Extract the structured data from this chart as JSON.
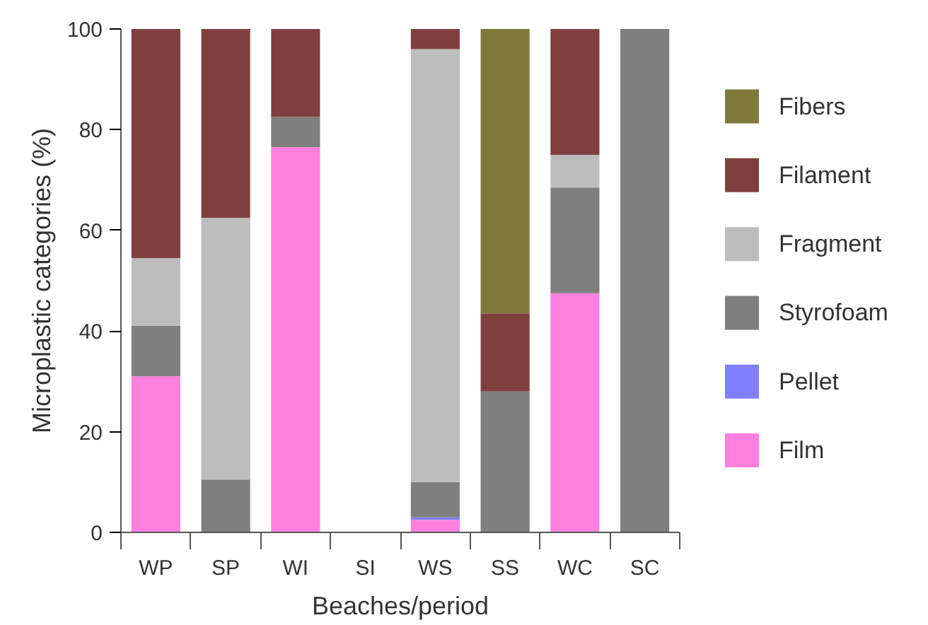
{
  "chart_data": {
    "type": "bar",
    "stacked": true,
    "xlabel": "Beaches/period",
    "ylabel": "Microplastic categories (%)",
    "categories": [
      "WP",
      "SP",
      "WI",
      "SI",
      "WS",
      "SS",
      "WC",
      "SC"
    ],
    "series": [
      {
        "name": "Film",
        "color": "#ff7fdf",
        "values": [
          31,
          0,
          76.5,
          null,
          2.5,
          0,
          47.5,
          0
        ]
      },
      {
        "name": "Pellet",
        "color": "#7f7fff",
        "values": [
          0,
          0,
          0,
          null,
          0.5,
          0,
          0,
          0
        ]
      },
      {
        "name": "Styrofoam",
        "color": "#7f7f7f",
        "values": [
          10,
          10.5,
          6,
          null,
          7,
          28,
          21,
          100
        ]
      },
      {
        "name": "Fragment",
        "color": "#bdbdbd",
        "values": [
          13.5,
          52,
          0,
          null,
          86,
          0,
          6.5,
          0
        ]
      },
      {
        "name": "Filament",
        "color": "#7f3f3f",
        "values": [
          45.5,
          37.5,
          17.5,
          null,
          4,
          15.5,
          25,
          0
        ]
      },
      {
        "name": "Fibers",
        "color": "#7f7a3a",
        "values": [
          0,
          0,
          0,
          null,
          0,
          56.5,
          0,
          0
        ]
      }
    ],
    "ylim": [
      0,
      100
    ],
    "yticks": [
      0,
      20,
      40,
      60,
      80,
      100
    ],
    "grid": false,
    "legend": "right"
  }
}
